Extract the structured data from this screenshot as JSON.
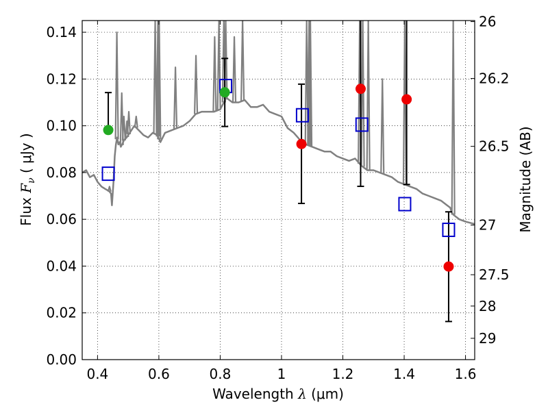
{
  "chart_data": {
    "type": "scatter",
    "xlabel": {
      "prefix": "Wavelength  ",
      "symbol": "λ",
      "unit": " (μm)"
    },
    "ylabel": {
      "prefix": "Flux  ",
      "symbol": "F",
      "subscript": "ν",
      "unit": "  ( μJy )"
    },
    "y2label": "Magnitude (AB)",
    "xlim": [
      0.35,
      1.63
    ],
    "ylim": [
      0.0,
      0.145
    ],
    "xticks": [
      0.4,
      0.6,
      0.8,
      1.0,
      1.2,
      1.4,
      1.6
    ],
    "xtick_labels": [
      "0.4",
      "0.6",
      "0.8",
      "1",
      "1.2",
      "1.4",
      "1.6"
    ],
    "yticks": [
      0.0,
      0.02,
      0.04,
      0.06,
      0.08,
      0.1,
      0.12,
      0.14
    ],
    "ytick_labels": [
      "0.00",
      "0.02",
      "0.04",
      "0.06",
      "0.08",
      "0.10",
      "0.12",
      "0.14"
    ],
    "y2ticks": [
      {
        "mag": 26.0,
        "label": "26"
      },
      {
        "mag": 26.2,
        "label": "26.2"
      },
      {
        "mag": 26.5,
        "label": "26.5"
      },
      {
        "mag": 27.0,
        "label": "27"
      },
      {
        "mag": 27.5,
        "label": "27.5"
      },
      {
        "mag": 28.0,
        "label": "28"
      },
      {
        "mag": 29.0,
        "label": "29"
      }
    ],
    "grid": true,
    "colors": {
      "model": "#808080",
      "model_points": "#0000cc",
      "obs_green": "#22aa22",
      "obs_red": "#ee0000",
      "errorbar": "#000000"
    },
    "series": [
      {
        "kind": "model_spectrum",
        "x": [
          0.35,
          0.363,
          0.375,
          0.388,
          0.4,
          0.413,
          0.425,
          0.438,
          0.444,
          0.447,
          0.452,
          0.456,
          0.46,
          0.464,
          0.468,
          0.472,
          0.476,
          0.48,
          0.487,
          0.495,
          0.505,
          0.52,
          0.535,
          0.55,
          0.565,
          0.58,
          0.595,
          0.605,
          0.62,
          0.64,
          0.66,
          0.68,
          0.7,
          0.72,
          0.74,
          0.76,
          0.78,
          0.8,
          0.82,
          0.84,
          0.86,
          0.88,
          0.9,
          0.92,
          0.94,
          0.96,
          0.98,
          1.0,
          1.02,
          1.04,
          1.06,
          1.08,
          1.1,
          1.12,
          1.14,
          1.16,
          1.18,
          1.2,
          1.22,
          1.24,
          1.26,
          1.28,
          1.3,
          1.32,
          1.34,
          1.36,
          1.38,
          1.4,
          1.42,
          1.44,
          1.46,
          1.48,
          1.5,
          1.52,
          1.54,
          1.55,
          1.555,
          1.56,
          1.57,
          1.58,
          1.6,
          1.63
        ],
        "y": [
          0.08,
          0.081,
          0.078,
          0.079,
          0.076,
          0.074,
          0.073,
          0.072,
          0.071,
          0.066,
          0.076,
          0.087,
          0.092,
          0.095,
          0.092,
          0.093,
          0.091,
          0.092,
          0.094,
          0.095,
          0.097,
          0.1,
          0.098,
          0.096,
          0.095,
          0.097,
          0.096,
          0.093,
          0.097,
          0.098,
          0.099,
          0.1,
          0.102,
          0.105,
          0.106,
          0.106,
          0.106,
          0.107,
          0.112,
          0.11,
          0.11,
          0.111,
          0.108,
          0.108,
          0.109,
          0.106,
          0.105,
          0.104,
          0.099,
          0.097,
          0.094,
          0.092,
          0.091,
          0.09,
          0.089,
          0.089,
          0.087,
          0.086,
          0.085,
          0.086,
          0.083,
          0.081,
          0.081,
          0.08,
          0.079,
          0.078,
          0.076,
          0.075,
          0.074,
          0.073,
          0.071,
          0.07,
          0.069,
          0.068,
          0.066,
          0.065,
          0.063,
          0.062,
          0.061,
          0.06,
          0.059,
          0.058
        ]
      },
      {
        "kind": "model_spikes",
        "x": [
          0.439,
          0.463,
          0.479,
          0.486,
          0.496,
          0.502,
          0.526,
          0.588,
          0.597,
          0.601,
          0.654,
          0.721,
          0.782,
          0.796,
          0.812,
          0.818,
          0.846,
          0.873,
          1.082,
          1.09,
          1.094,
          1.255,
          1.265,
          1.283,
          1.329,
          1.402,
          1.56
        ],
        "top": [
          0.074,
          0.14,
          0.114,
          0.104,
          0.102,
          0.106,
          0.104,
          0.145,
          0.145,
          0.145,
          0.125,
          0.13,
          0.138,
          0.145,
          0.145,
          0.145,
          0.138,
          0.145,
          0.145,
          0.145,
          0.145,
          0.145,
          0.145,
          0.145,
          0.12,
          0.145,
          0.145
        ]
      },
      {
        "kind": "model_points",
        "x": [
          0.435,
          0.818,
          1.068,
          1.262,
          1.402,
          1.545
        ],
        "y": [
          0.0795,
          0.117,
          0.1045,
          0.1005,
          0.0665,
          0.0555
        ]
      },
      {
        "kind": "observed",
        "x": [
          0.435,
          0.815,
          1.065,
          1.258,
          1.408,
          1.545
        ],
        "y": [
          0.0982,
          0.1143,
          0.0922,
          0.1158,
          0.1113,
          0.0398
        ],
        "yerr_low": [
          0.0982,
          0.0997,
          0.0668,
          0.0741,
          0.0749,
          0.0163
        ],
        "yerr_high": [
          0.1142,
          0.1288,
          0.1178,
          0.145,
          0.145,
          0.0632
        ],
        "color_key": [
          "obs_green",
          "obs_green",
          "obs_red",
          "obs_red",
          "obs_red",
          "obs_red"
        ]
      }
    ]
  }
}
